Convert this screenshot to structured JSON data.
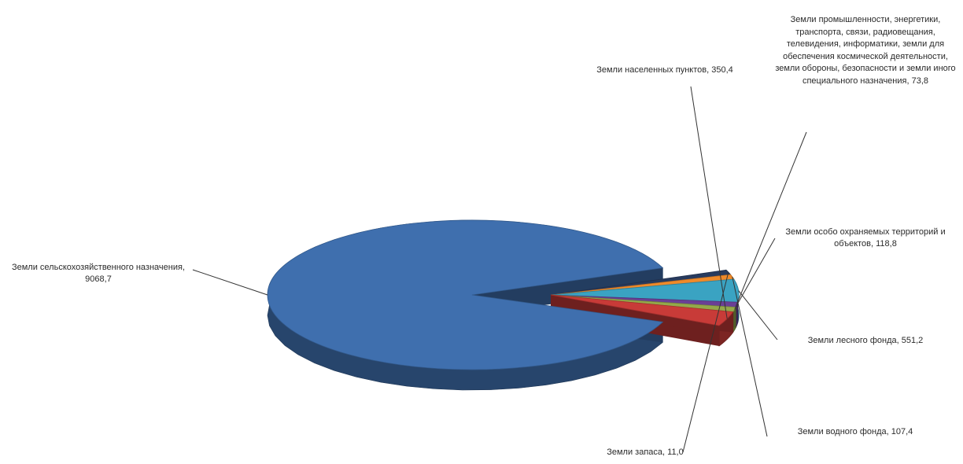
{
  "chart_data": {
    "type": "pie",
    "style": "3d-exploded",
    "slices": [
      {
        "label": "Земли сельскохозяйственного назначения, 9068,7",
        "value": 9068.7,
        "color": "#3f6fae"
      },
      {
        "label": "Земли запаса, 11,0",
        "value": 11.0,
        "color": "#283b5e"
      },
      {
        "label": "Земли водного фонда, 107,4",
        "value": 107.4,
        "color": "#ef8a2a"
      },
      {
        "label": "Земли лесного фонда, 551,2",
        "value": 551.2,
        "color": "#3aa3c2"
      },
      {
        "label": "Земли особо охраняемых территорий и объектов, 118,8",
        "value": 118.8,
        "color": "#6a3f96"
      },
      {
        "label": "Земли промышленности, энергетики, транспорта, связи, радиовещания, телевидения, информатики, земли для обеспечения космической деятельности, земли обороны, безопасности и земли иного специального назначения, 73,8",
        "value": 73.8,
        "color": "#94a84a"
      },
      {
        "label": "Земли населенных пунктов, 350,4",
        "value": 350.4,
        "color": "#c83b38"
      }
    ]
  }
}
